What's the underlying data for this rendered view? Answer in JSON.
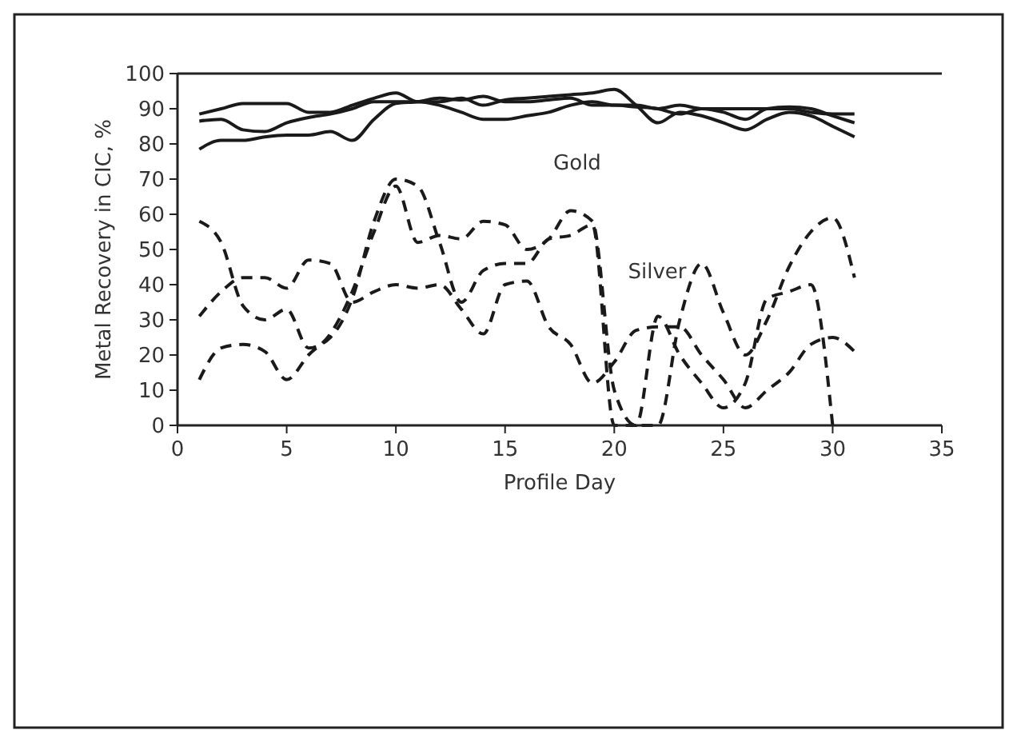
{
  "chart_data": {
    "type": "line",
    "xlabel": "Profile Day",
    "ylabel": "Metal Recovery in CIC, %",
    "xlim": [
      0,
      35
    ],
    "xticks": [
      0,
      5,
      10,
      15,
      20,
      25,
      30,
      35
    ],
    "ylim": [
      0,
      100
    ],
    "yticks": [
      0,
      10,
      20,
      30,
      40,
      50,
      60,
      70,
      80,
      90,
      100
    ],
    "grid": false,
    "x": [
      1,
      2,
      3,
      4,
      5,
      6,
      7,
      8,
      9,
      10,
      11,
      12,
      13,
      14,
      15,
      16,
      17,
      18,
      19,
      20,
      21,
      22,
      23,
      24,
      25,
      26,
      27,
      28,
      29,
      30,
      31
    ],
    "series": [
      {
        "color": "#1a1a1a",
        "line_style": "solid",
        "values": [
          88.5,
          90,
          91.5,
          91.5,
          91.5,
          89,
          89,
          91,
          93,
          94.5,
          92,
          92,
          93,
          91,
          92.5,
          93,
          93.5,
          94,
          94.5,
          95.5,
          91,
          86,
          89,
          88,
          86,
          84,
          87,
          89,
          88,
          85,
          82
        ]
      },
      {
        "color": "#1a1a1a",
        "line_style": "solid",
        "values": [
          86.5,
          87,
          84,
          83.5,
          86,
          87.5,
          88.5,
          90,
          92,
          92,
          92,
          91,
          89,
          87,
          87,
          88,
          89,
          91,
          92,
          91,
          91,
          90,
          91,
          90,
          90,
          90,
          90,
          90,
          89,
          88.5,
          88.5
        ]
      },
      {
        "color": "#1a1a1a",
        "line_style": "solid",
        "values": [
          78.5,
          81,
          81,
          82,
          82.5,
          82.5,
          83.5,
          81,
          87,
          91.5,
          92,
          93,
          92.5,
          93.5,
          92,
          92,
          92.5,
          93,
          91,
          91,
          90.5,
          90,
          88.5,
          90,
          89,
          87,
          90,
          90.5,
          90,
          88,
          86
        ]
      },
      {
        "color": "#1a1a1a",
        "line_style": "dashed",
        "values": [
          31,
          38,
          42,
          42,
          39,
          47,
          46,
          35,
          38,
          40,
          39,
          40,
          33,
          26,
          40,
          41,
          28,
          23,
          12,
          18,
          27,
          28,
          28,
          20,
          13,
          5,
          10,
          15,
          23,
          25,
          21
        ]
      },
      {
        "color": "#1a1a1a",
        "line_style": "dashed",
        "values": [
          58,
          52,
          34,
          30,
          33,
          22,
          25,
          36,
          58,
          70,
          68,
          52,
          35,
          44,
          46,
          46,
          53,
          54,
          57,
          0,
          0,
          31,
          20,
          12,
          5,
          12,
          36,
          38,
          40,
          0,
          null
        ]
      },
      {
        "color": "#1a1a1a",
        "line_style": "dashed",
        "values": [
          13,
          22,
          23,
          21,
          13,
          20,
          26,
          38,
          55,
          68,
          52,
          54,
          53,
          58,
          57,
          50,
          53,
          61,
          58,
          10,
          0,
          0,
          30,
          46,
          32,
          20,
          30,
          45,
          55,
          59,
          42
        ]
      }
    ],
    "annotations": [
      "Gold",
      "Silver"
    ]
  }
}
